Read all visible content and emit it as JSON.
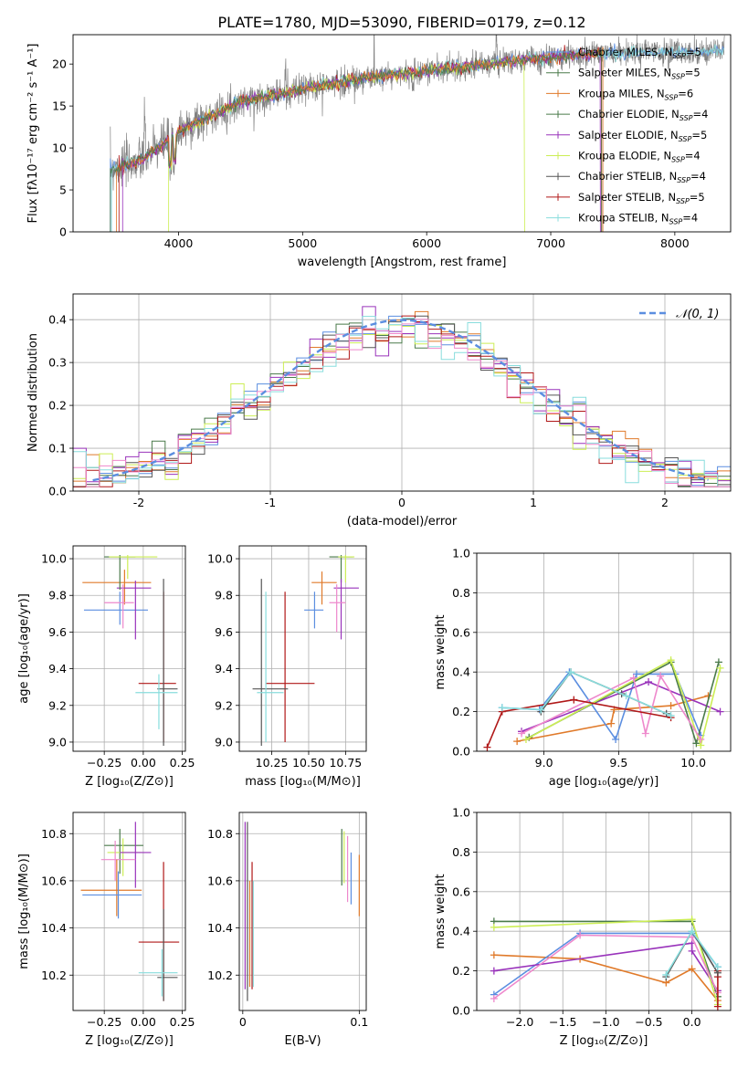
{
  "title": "PLATE=1780, MJD=53090, FIBERID=0179, z=0.12",
  "colors": {
    "gray": "#808080",
    "blue": "#5b8ee0",
    "orange": "#e07a2a",
    "darkgreen": "#4a7a4a",
    "purple": "#9933bb",
    "lime": "#ccee55",
    "darkgray": "#555555",
    "red": "#b01818",
    "cyan": "#88dddd",
    "pink": "#ee88cc",
    "grid": "#b0b0b0"
  },
  "chart_data": [
    {
      "id": "spectrum",
      "type": "line",
      "xlabel": "wavelength [Angstrom, rest frame]",
      "ylabel": "Flux [fλ10⁻¹⁷ erg cm⁻² s⁻¹ A⁻¹]",
      "xlim": [
        3150,
        8450
      ],
      "ylim": [
        0,
        23.5
      ],
      "xticks": [
        4000,
        5000,
        6000,
        7000,
        8000
      ],
      "yticks": [
        0,
        5,
        10,
        15,
        20
      ],
      "legend": [
        {
          "label": "Chabrier MILES, N_SSP=5",
          "color": "#5b8ee0"
        },
        {
          "label": "Salpeter MILES, N_SSP=5",
          "color": "#4a7a4a"
        },
        {
          "label": "Kroupa MILES, N_SSP=6",
          "color": "#e07a2a"
        },
        {
          "label": "Chabrier ELODIE, N_SSP=4",
          "color": "#4a7a4a"
        },
        {
          "label": "Salpeter ELODIE, N_SSP=5",
          "color": "#9933bb"
        },
        {
          "label": "Kroupa ELODIE, N_SSP=4",
          "color": "#ccee55"
        },
        {
          "label": "Chabrier STELIB, N_SSP=4",
          "color": "#555555"
        },
        {
          "label": "Salpeter STELIB, N_SSP=5",
          "color": "#b01818"
        },
        {
          "label": "Kroupa STELIB, N_SSP=4",
          "color": "#88dddd"
        }
      ],
      "continuum": {
        "x": [
          3450,
          3700,
          4000,
          4500,
          5000,
          5500,
          6000,
          6500,
          7000,
          7400,
          8400
        ],
        "y": [
          7.5,
          8.5,
          12.0,
          15.5,
          17.0,
          18.3,
          19.2,
          20.0,
          20.8,
          21.2,
          21.5
        ]
      },
      "data_start": 3450,
      "data_end": 8400
    },
    {
      "id": "residuals",
      "type": "step-histogram",
      "xlabel": "(data-model)/error",
      "ylabel": "Normed distribution",
      "xlim": [
        -2.5,
        2.5
      ],
      "ylim": [
        0,
        0.46
      ],
      "xticks": [
        -2,
        -1,
        0,
        1,
        2
      ],
      "yticks": [
        0.0,
        0.1,
        0.2,
        0.3,
        0.4
      ],
      "legend_label": "𝒩(0, 1)",
      "bin_width": 0.1
    },
    {
      "id": "age-vs-Z",
      "type": "errorbar",
      "xlabel": "Z [log₁₀(Z/Z⊙)]",
      "ylabel": "age  [log₁₀(age/yr)]",
      "xlim": [
        -0.45,
        0.27
      ],
      "ylim": [
        8.95,
        10.07
      ],
      "xticks": [
        -0.25,
        0.0,
        0.25
      ],
      "xticklabels": [
        "−0.25",
        "0.00",
        "0.25"
      ],
      "yticks": [
        9.0,
        9.2,
        9.4,
        9.6,
        9.8,
        10.0
      ],
      "points": [
        {
          "x": -0.12,
          "xerr": [
            0.27,
            0.17
          ],
          "y": 9.87,
          "yerr": [
            0.12,
            0.07
          ],
          "color": "#e07a2a"
        },
        {
          "x": -0.15,
          "xerr": [
            0.23,
            0.18
          ],
          "y": 9.72,
          "yerr": [
            0.08,
            0.1
          ],
          "color": "#5b8ee0"
        },
        {
          "x": -0.05,
          "xerr": [
            0.12,
            0.1
          ],
          "y": 9.84,
          "yerr": [
            0.28,
            0.04
          ],
          "color": "#9933bb"
        },
        {
          "x": -0.15,
          "xerr": [
            0.1,
            0.1
          ],
          "y": 10.01,
          "yerr": [
            0.18,
            0.01
          ],
          "color": "#4a7a4a"
        },
        {
          "x": -0.1,
          "xerr": [
            0.12,
            0.19
          ],
          "y": 10.01,
          "yerr": [
            0.12,
            0.01
          ],
          "color": "#ccee55"
        },
        {
          "x": -0.13,
          "xerr": [
            0.12,
            0.07
          ],
          "y": 9.76,
          "yerr": [
            0.14,
            0.1
          ],
          "color": "#ee88cc"
        },
        {
          "x": 0.13,
          "xerr": [
            0.16,
            0.08
          ],
          "y": 9.32,
          "yerr": [
            0.32,
            0.5
          ],
          "color": "#b01818"
        },
        {
          "x": 0.13,
          "xerr": [
            0.04,
            0.09
          ],
          "y": 9.29,
          "yerr": [
            0.31,
            0.6
          ],
          "color": "#555555"
        },
        {
          "x": 0.1,
          "xerr": [
            0.15,
            0.12
          ],
          "y": 9.27,
          "yerr": [
            0.2,
            0.1
          ],
          "color": "#88dddd"
        }
      ]
    },
    {
      "id": "age-vs-mass",
      "type": "errorbar",
      "xlabel": "mass [log₁₀(M/M⊙)]",
      "ylabel": "",
      "xlim": [
        10.03,
        10.89
      ],
      "ylim": [
        8.95,
        10.07
      ],
      "xticks": [
        10.25,
        10.5,
        10.75
      ],
      "xticklabels": [
        "10.25",
        "10.50",
        "10.75"
      ],
      "yticks": [
        9.0,
        9.2,
        9.4,
        9.6,
        9.8,
        10.0
      ],
      "points": [
        {
          "x": 10.72,
          "xerr": [
            0.08,
            0.08
          ],
          "y": 10.01,
          "yerr": [
            0.14,
            0.01
          ],
          "color": "#4a7a4a"
        },
        {
          "x": 10.75,
          "xerr": [
            0.05,
            0.06
          ],
          "y": 10.01,
          "yerr": [
            0.14,
            0.01
          ],
          "color": "#ccee55"
        },
        {
          "x": 10.59,
          "xerr": [
            0.07,
            0.1
          ],
          "y": 9.87,
          "yerr": [
            0.12,
            0.06
          ],
          "color": "#e07a2a"
        },
        {
          "x": 10.72,
          "xerr": [
            0.05,
            0.12
          ],
          "y": 9.84,
          "yerr": [
            0.28,
            0.05
          ],
          "color": "#9933bb"
        },
        {
          "x": 10.69,
          "xerr": [
            0.05,
            0.06
          ],
          "y": 9.76,
          "yerr": [
            0.16,
            0.1
          ],
          "color": "#ee88cc"
        },
        {
          "x": 10.54,
          "xerr": [
            0.07,
            0.06
          ],
          "y": 9.72,
          "yerr": [
            0.1,
            0.1
          ],
          "color": "#5b8ee0"
        },
        {
          "x": 10.34,
          "xerr": [
            0.13,
            0.2
          ],
          "y": 9.32,
          "yerr": [
            0.32,
            0.5
          ],
          "color": "#b01818"
        },
        {
          "x": 10.18,
          "xerr": [
            0.06,
            0.18
          ],
          "y": 9.29,
          "yerr": [
            0.31,
            0.6
          ],
          "color": "#555555"
        },
        {
          "x": 10.21,
          "xerr": [
            0.06,
            0.12
          ],
          "y": 9.27,
          "yerr": [
            0.27,
            0.55
          ],
          "color": "#88dddd"
        }
      ]
    },
    {
      "id": "weight-vs-age",
      "type": "line",
      "xlabel": "age  [log₁₀(age/yr)]",
      "ylabel": "mass weight",
      "xlim": [
        8.55,
        10.25
      ],
      "ylim": [
        0.0,
        1.0
      ],
      "xticks": [
        9.0,
        9.5,
        10.0
      ],
      "xticklabels": [
        "9.0",
        "9.5",
        "10.0"
      ],
      "yticks": [
        0.0,
        0.2,
        0.4,
        0.6,
        0.8,
        1.0
      ],
      "series": [
        {
          "color": "#e07a2a",
          "x": [
            8.82,
            9.45,
            9.47,
            9.85,
            10.1
          ],
          "y": [
            0.05,
            0.14,
            0.21,
            0.23,
            0.28
          ]
        },
        {
          "color": "#5b8ee0",
          "x": [
            8.72,
            8.97,
            9.17,
            9.48,
            9.62,
            9.88,
            10.05
          ],
          "y": [
            0.22,
            0.21,
            0.4,
            0.06,
            0.39,
            0.39,
            0.08
          ]
        },
        {
          "color": "#9933bb",
          "x": [
            8.85,
            9.7,
            10.18
          ],
          "y": [
            0.1,
            0.35,
            0.2
          ]
        },
        {
          "color": "#4a7a4a",
          "x": [
            8.9,
            9.85,
            10.02,
            10.17
          ],
          "y": [
            0.07,
            0.45,
            0.04,
            0.45
          ]
        },
        {
          "color": "#ccee55",
          "x": [
            8.88,
            9.85,
            10.05,
            10.18
          ],
          "y": [
            0.06,
            0.46,
            0.03,
            0.42
          ]
        },
        {
          "color": "#ee88cc",
          "x": [
            8.85,
            9.6,
            9.68,
            9.78,
            10.05
          ],
          "y": [
            0.09,
            0.37,
            0.09,
            0.38,
            0.06
          ]
        },
        {
          "color": "#b01818",
          "x": [
            8.62,
            8.72,
            9.2,
            9.85
          ],
          "y": [
            0.02,
            0.2,
            0.26,
            0.17
          ]
        },
        {
          "color": "#555555",
          "x": [
            8.98,
            9.18,
            9.52,
            9.82
          ],
          "y": [
            0.2,
            0.4,
            0.29,
            0.19
          ]
        },
        {
          "color": "#88dddd",
          "x": [
            8.72,
            8.98,
            9.18,
            9.55,
            9.85
          ],
          "y": [
            0.22,
            0.21,
            0.4,
            0.28,
            0.18
          ]
        }
      ]
    },
    {
      "id": "mass-vs-Z",
      "type": "errorbar",
      "xlabel": "Z [log₁₀(Z/Z⊙)]",
      "ylabel": "mass [log₁₀(M/M⊙)]",
      "xlim": [
        -0.45,
        0.27
      ],
      "ylim": [
        10.05,
        10.89
      ],
      "xticks": [
        -0.25,
        0.0,
        0.25
      ],
      "xticklabels": [
        "−0.25",
        "0.00",
        "0.25"
      ],
      "yticks": [
        10.2,
        10.4,
        10.6,
        10.8
      ],
      "points": [
        {
          "x": -0.15,
          "xerr": [
            0.1,
            0.15
          ],
          "y": 10.75,
          "yerr": [
            0.12,
            0.07
          ],
          "color": "#4a7a4a"
        },
        {
          "x": -0.13,
          "xerr": [
            0.1,
            0.12
          ],
          "y": 10.72,
          "yerr": [
            0.1,
            0.06
          ],
          "color": "#ccee55"
        },
        {
          "x": -0.05,
          "xerr": [
            0.1,
            0.1
          ],
          "y": 10.72,
          "yerr": [
            0.15,
            0.13
          ],
          "color": "#9933bb"
        },
        {
          "x": -0.18,
          "xerr": [
            0.09,
            0.13
          ],
          "y": 10.69,
          "yerr": [
            0.09,
            0.08
          ],
          "color": "#ee88cc"
        },
        {
          "x": -0.17,
          "xerr": [
            0.23,
            0.16
          ],
          "y": 10.56,
          "yerr": [
            0.11,
            0.13
          ],
          "color": "#e07a2a"
        },
        {
          "x": -0.16,
          "xerr": [
            0.23,
            0.15
          ],
          "y": 10.54,
          "yerr": [
            0.1,
            0.1
          ],
          "color": "#5b8ee0"
        },
        {
          "x": 0.13,
          "xerr": [
            0.16,
            0.1
          ],
          "y": 10.34,
          "yerr": [
            0.25,
            0.34
          ],
          "color": "#b01818"
        },
        {
          "x": 0.13,
          "xerr": [
            0.04,
            0.09
          ],
          "y": 10.19,
          "yerr": [
            0.1,
            0.29
          ],
          "color": "#555555"
        },
        {
          "x": 0.12,
          "xerr": [
            0.15,
            0.1
          ],
          "y": 10.21,
          "yerr": [
            0.1,
            0.1
          ],
          "color": "#88dddd"
        }
      ]
    },
    {
      "id": "mass-vs-EBV",
      "type": "errorbar",
      "xlabel": "E(B-V)",
      "ylabel": "",
      "xlim": [
        -0.003,
        0.106
      ],
      "ylim": [
        10.05,
        10.89
      ],
      "xticks": [
        0.0,
        0.1
      ],
      "xticklabels": [
        "0",
        "0.1"
      ],
      "yticks": [
        10.2,
        10.4,
        10.6,
        10.8
      ],
      "points": [
        {
          "x": 0.002,
          "y": 10.69,
          "yerr": [
            0.55,
            0.16
          ],
          "color": "#9933bb"
        },
        {
          "x": 0.004,
          "y": 10.47,
          "yerr": [
            0.38,
            0.38
          ],
          "color": "#555555"
        },
        {
          "x": 0.006,
          "y": 10.46,
          "yerr": [
            0.31,
            0.14
          ],
          "color": "#e07a2a"
        },
        {
          "x": 0.008,
          "y": 10.54,
          "yerr": [
            0.4,
            0.14
          ],
          "color": "#b01818"
        },
        {
          "x": 0.009,
          "y": 10.4,
          "yerr": [
            0.25,
            0.2
          ],
          "color": "#88dddd"
        },
        {
          "x": 0.085,
          "y": 10.72,
          "yerr": [
            0.14,
            0.1
          ],
          "color": "#4a7a4a"
        },
        {
          "x": 0.087,
          "y": 10.73,
          "yerr": [
            0.14,
            0.08
          ],
          "color": "#ccee55"
        },
        {
          "x": 0.09,
          "y": 10.69,
          "yerr": [
            0.18,
            0.1
          ],
          "color": "#ee88cc"
        },
        {
          "x": 0.093,
          "y": 10.62,
          "yerr": [
            0.12,
            0.1
          ],
          "color": "#5b8ee0"
        },
        {
          "x": 0.1,
          "y": 10.58,
          "yerr": [
            0.13,
            0.13
          ],
          "color": "#e07a2a"
        }
      ]
    },
    {
      "id": "weight-vs-Z",
      "type": "line",
      "xlabel": "Z [log₁₀(Z/Z⊙)]",
      "ylabel": "mass weight",
      "xlim": [
        -2.5,
        0.45
      ],
      "ylim": [
        0.0,
        1.0
      ],
      "xticks": [
        -2.0,
        -1.5,
        -1.0,
        -0.5,
        0.0
      ],
      "xticklabels": [
        "−2.0",
        "−1.5",
        "−1.0",
        "−0.5",
        "0.0"
      ],
      "yticks": [
        0.0,
        0.2,
        0.4,
        0.6,
        0.8,
        1.0
      ],
      "series": [
        {
          "color": "#e07a2a",
          "x": [
            -2.3,
            -1.3,
            -0.3,
            0.0,
            0.3
          ],
          "y": [
            0.28,
            0.26,
            0.14,
            0.21,
            0.05
          ]
        },
        {
          "color": "#5b8ee0",
          "x": [
            -2.3,
            -1.3,
            0.0,
            0.3
          ],
          "y": [
            0.08,
            0.39,
            0.39,
            0.22
          ]
        },
        {
          "color": "#9933bb",
          "x": [
            -2.3,
            0.0,
            0.0,
            0.3
          ],
          "y": [
            0.2,
            0.34,
            0.3,
            0.1
          ]
        },
        {
          "color": "#4a7a4a",
          "x": [
            -2.3,
            0.0,
            0.3
          ],
          "y": [
            0.45,
            0.45,
            0.07
          ]
        },
        {
          "color": "#ccee55",
          "x": [
            -2.3,
            0.0,
            0.3
          ],
          "y": [
            0.42,
            0.46,
            0.03
          ]
        },
        {
          "color": "#ee88cc",
          "x": [
            -2.3,
            -1.3,
            0.0,
            0.3
          ],
          "y": [
            0.06,
            0.38,
            0.37,
            0.09
          ]
        },
        {
          "color": "#b01818",
          "x": [
            0.3,
            0.3,
            0.3
          ],
          "y": [
            0.02,
            0.17,
            0.2
          ]
        },
        {
          "color": "#555555",
          "x": [
            -0.3,
            0.0,
            0.3
          ],
          "y": [
            0.17,
            0.4,
            0.19
          ]
        },
        {
          "color": "#88dddd",
          "x": [
            -0.3,
            0.0,
            0.3
          ],
          "y": [
            0.18,
            0.4,
            0.22
          ]
        }
      ]
    }
  ]
}
